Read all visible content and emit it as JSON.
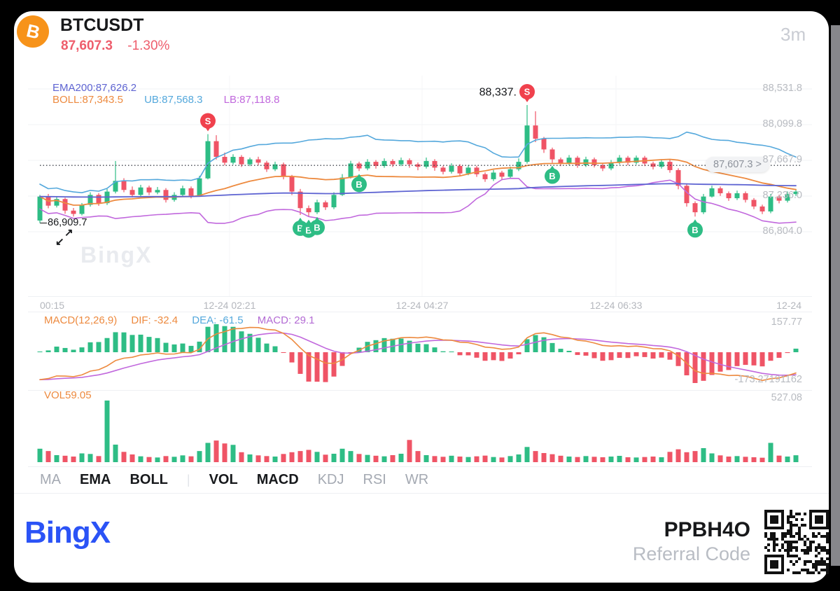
{
  "header": {
    "symbol": "BTCUSDT",
    "price": "87,607.3",
    "change": "-1.30%",
    "timeframe": "3m",
    "coin_glyph": "B"
  },
  "main_chart": {
    "ema_label": "EMA200:87,626.2",
    "boll_label": "BOLL:87,343.5",
    "ub_label": "UB:87,568.3",
    "lb_label": "LB:87,118.8",
    "current_price_tag": "87,607.3 >",
    "low_annotation": "86,909.7",
    "watermark": "BingX"
  },
  "icons": {
    "expand_ne": "↗",
    "expand_sw": "↙"
  },
  "macd_pane": {
    "title": "MACD(12,26,9)",
    "dif_label": "DIF: -32.4",
    "dea_label": "DEA: -61.5",
    "macd_label": "MACD: 29.1",
    "max_label": "157.77",
    "min_label": "-173.27191162"
  },
  "vol_pane": {
    "label": "VOL59.05",
    "max_label": "527.08"
  },
  "tabs": [
    {
      "label": "MA",
      "active": false
    },
    {
      "label": "EMA",
      "active": true
    },
    {
      "label": "BOLL",
      "active": true
    },
    {
      "label": "VOL",
      "active": true
    },
    {
      "label": "MACD",
      "active": true
    },
    {
      "label": "KDJ",
      "active": false
    },
    {
      "label": "RSI",
      "active": false
    },
    {
      "label": "WR",
      "active": false
    }
  ],
  "tabs_divider": "|",
  "footer": {
    "logo": "BingX",
    "referral_code": "PPBH4O",
    "referral_label": "Referral Code"
  },
  "colors": {
    "up": "#2ebd85",
    "down": "#ef5466",
    "text_red": "#ee5d6c",
    "ema": "#5e64d2",
    "boll_mid": "#ed8a3f",
    "boll_up": "#54a8dc",
    "boll_low": "#c168dd",
    "dif": "#ed8a3f",
    "dea": "#c168dd",
    "dea_text": "#54a8dc",
    "macd_text": "#b36bd4",
    "buy": "#2ebd85",
    "sell": "#f0414d",
    "brand": "#2b53f6",
    "bitcoin": "#f7931a",
    "axis_text": "#b8bbc1"
  },
  "chart_data": {
    "type": "candlestick",
    "symbol": "BTCUSDT",
    "interval": "3m",
    "title": "BTCUSDT 3m candlestick with EMA200 + BOLL(20,2), MACD(12,26,9) and volume",
    "y_labels": [
      "88,531.8",
      "88,099.8",
      "87,667.9",
      "87,236.0",
      "86,804.0"
    ],
    "price_gridlines": [
      88531.8,
      88099.8,
      87667.9,
      87236.0,
      86804.0
    ],
    "x_labels": [
      "00:15",
      "12-24 02:21",
      "12-24 04:27",
      "12-24 06:33",
      "12-24"
    ],
    "current_price": 87607.3,
    "low_point": 86909.7,
    "high_point": 88337,
    "indicators": {
      "ema_period": 200,
      "boll_period": 20,
      "boll_mult": 2,
      "macd": [
        12,
        26,
        9
      ]
    },
    "macd_ylim": [
      -173.27191162,
      157.77
    ],
    "vol_max": 527.08,
    "vol_last": 59.05,
    "candles": [
      [
        86940,
        87250,
        86909.7,
        87230
      ],
      [
        87230,
        87262,
        87088,
        87120
      ],
      [
        87120,
        87232,
        87098,
        87200
      ],
      [
        87200,
        87216,
        87022,
        87060
      ],
      [
        87060,
        87092,
        86988,
        87020
      ],
      [
        87020,
        87152,
        87002,
        87130
      ],
      [
        87130,
        87282,
        87108,
        87250
      ],
      [
        87250,
        87272,
        87118,
        87150
      ],
      [
        87150,
        87322,
        87128,
        87290
      ],
      [
        87290,
        87660,
        87268,
        87420
      ],
      [
        87420,
        87452,
        87282,
        87310
      ],
      [
        87310,
        87352,
        87218,
        87250
      ],
      [
        87250,
        87372,
        87228,
        87340
      ],
      [
        87340,
        87362,
        87248,
        87280
      ],
      [
        87280,
        87346,
        87258,
        87310
      ],
      [
        87310,
        87332,
        87158,
        87190
      ],
      [
        87190,
        87282,
        87168,
        87250
      ],
      [
        87250,
        87362,
        87232,
        87330
      ],
      [
        87330,
        87352,
        87208,
        87240
      ],
      [
        87240,
        87482,
        87228,
        87450
      ],
      [
        87450,
        87985,
        87438,
        87900
      ],
      [
        87900,
        87972,
        87678,
        87710
      ],
      [
        87710,
        87762,
        87608,
        87640
      ],
      [
        87640,
        87742,
        87618,
        87710
      ],
      [
        87710,
        87732,
        87588,
        87620
      ],
      [
        87620,
        87702,
        87598,
        87680
      ],
      [
        87680,
        87712,
        87608,
        87640
      ],
      [
        87640,
        87662,
        87528,
        87560
      ],
      [
        87560,
        87652,
        87538,
        87620
      ],
      [
        87620,
        87642,
        87438,
        87470
      ],
      [
        87470,
        87492,
        87248,
        87290
      ],
      [
        87290,
        87322,
        87008,
        87090
      ],
      [
        87090,
        87122,
        86985,
        87040
      ],
      [
        87040,
        87192,
        87018,
        87160
      ],
      [
        87160,
        87182,
        87068,
        87100
      ],
      [
        87100,
        87282,
        87078,
        87250
      ],
      [
        87250,
        87502,
        87238,
        87460
      ],
      [
        87460,
        87662,
        87448,
        87630
      ],
      [
        87630,
        87652,
        87538,
        87570
      ],
      [
        87570,
        87682,
        87548,
        87650
      ],
      [
        87650,
        87672,
        87568,
        87600
      ],
      [
        87600,
        87692,
        87578,
        87660
      ],
      [
        87660,
        87682,
        87588,
        87620
      ],
      [
        87620,
        87702,
        87598,
        87670
      ],
      [
        87670,
        87692,
        87578,
        87620
      ],
      [
        87620,
        87642,
        87548,
        87590
      ],
      [
        87590,
        87702,
        87568,
        87660
      ],
      [
        87660,
        87682,
        87542,
        87580
      ],
      [
        87580,
        87602,
        87498,
        87530
      ],
      [
        87530,
        87632,
        87508,
        87600
      ],
      [
        87600,
        87622,
        87478,
        87510
      ],
      [
        87510,
        87612,
        87488,
        87580
      ],
      [
        87580,
        87602,
        87468,
        87500
      ],
      [
        87500,
        87522,
        87408,
        87440
      ],
      [
        87440,
        87552,
        87418,
        87520
      ],
      [
        87520,
        87542,
        87428,
        87470
      ],
      [
        87470,
        87592,
        87448,
        87560
      ],
      [
        87560,
        87692,
        87538,
        87650
      ],
      [
        87650,
        88337,
        87628,
        88090
      ],
      [
        88090,
        88262,
        87888,
        87930
      ],
      [
        87930,
        87952,
        87758,
        87800
      ],
      [
        87800,
        87822,
        87638,
        87680
      ],
      [
        87680,
        87702,
        87598,
        87630
      ],
      [
        87630,
        87732,
        87608,
        87700
      ],
      [
        87700,
        87722,
        87578,
        87610
      ],
      [
        87610,
        87712,
        87588,
        87680
      ],
      [
        87680,
        87702,
        87582,
        87610
      ],
      [
        87610,
        87632,
        87538,
        87570
      ],
      [
        87570,
        87672,
        87548,
        87640
      ],
      [
        87640,
        87732,
        87618,
        87700
      ],
      [
        87700,
        87722,
        87608,
        87640
      ],
      [
        87640,
        87726,
        87618,
        87700
      ],
      [
        87700,
        87722,
        87598,
        87630
      ],
      [
        87630,
        87652,
        87558,
        87590
      ],
      [
        87590,
        87682,
        87568,
        87650
      ],
      [
        87650,
        87672,
        87518,
        87550
      ],
      [
        87550,
        87572,
        87318,
        87360
      ],
      [
        87360,
        87382,
        87108,
        87150
      ],
      [
        87150,
        87172,
        86988,
        87040
      ],
      [
        87040,
        87262,
        87018,
        87230
      ],
      [
        87230,
        87362,
        87218,
        87330
      ],
      [
        87330,
        87352,
        87238,
        87270
      ],
      [
        87270,
        87292,
        87178,
        87210
      ],
      [
        87210,
        87302,
        87188,
        87270
      ],
      [
        87270,
        87292,
        87158,
        87190
      ],
      [
        87190,
        87212,
        87078,
        87110
      ],
      [
        87110,
        87132,
        87018,
        87050
      ],
      [
        87050,
        87262,
        87028,
        87230
      ],
      [
        87230,
        87252,
        87148,
        87180
      ],
      [
        87180,
        87292,
        87158,
        87260
      ],
      [
        87260,
        87322,
        87238,
        87290
      ]
    ],
    "volumes": [
      115,
      95,
      60,
      55,
      48,
      75,
      70,
      52,
      527,
      150,
      88,
      66,
      50,
      44,
      40,
      52,
      46,
      58,
      50,
      95,
      165,
      185,
      160,
      148,
      85,
      66,
      58,
      52,
      48,
      70,
      85,
      95,
      105,
      88,
      64,
      72,
      115,
      95,
      70,
      62,
      55,
      50,
      60,
      72,
      190,
      95,
      60,
      52,
      46,
      55,
      48,
      44,
      50,
      56,
      44,
      40,
      52,
      66,
      130,
      95,
      78,
      68,
      55,
      48,
      44,
      52,
      46,
      42,
      48,
      54,
      42,
      40,
      44,
      48,
      42,
      88,
      110,
      85,
      95,
      120,
      75,
      58,
      48,
      52,
      46,
      42,
      38,
      165,
      56,
      48,
      59
    ],
    "markers": [
      {
        "type": "S",
        "index": 20
      },
      {
        "type": "S",
        "index": 58,
        "label": "88,337."
      },
      {
        "type": "B",
        "index": 31
      },
      {
        "type": "B",
        "index": 32
      },
      {
        "type": "B",
        "index": 33
      },
      {
        "type": "B",
        "index": 38
      },
      {
        "type": "B",
        "index": 61
      },
      {
        "type": "B",
        "index": 78
      }
    ]
  }
}
